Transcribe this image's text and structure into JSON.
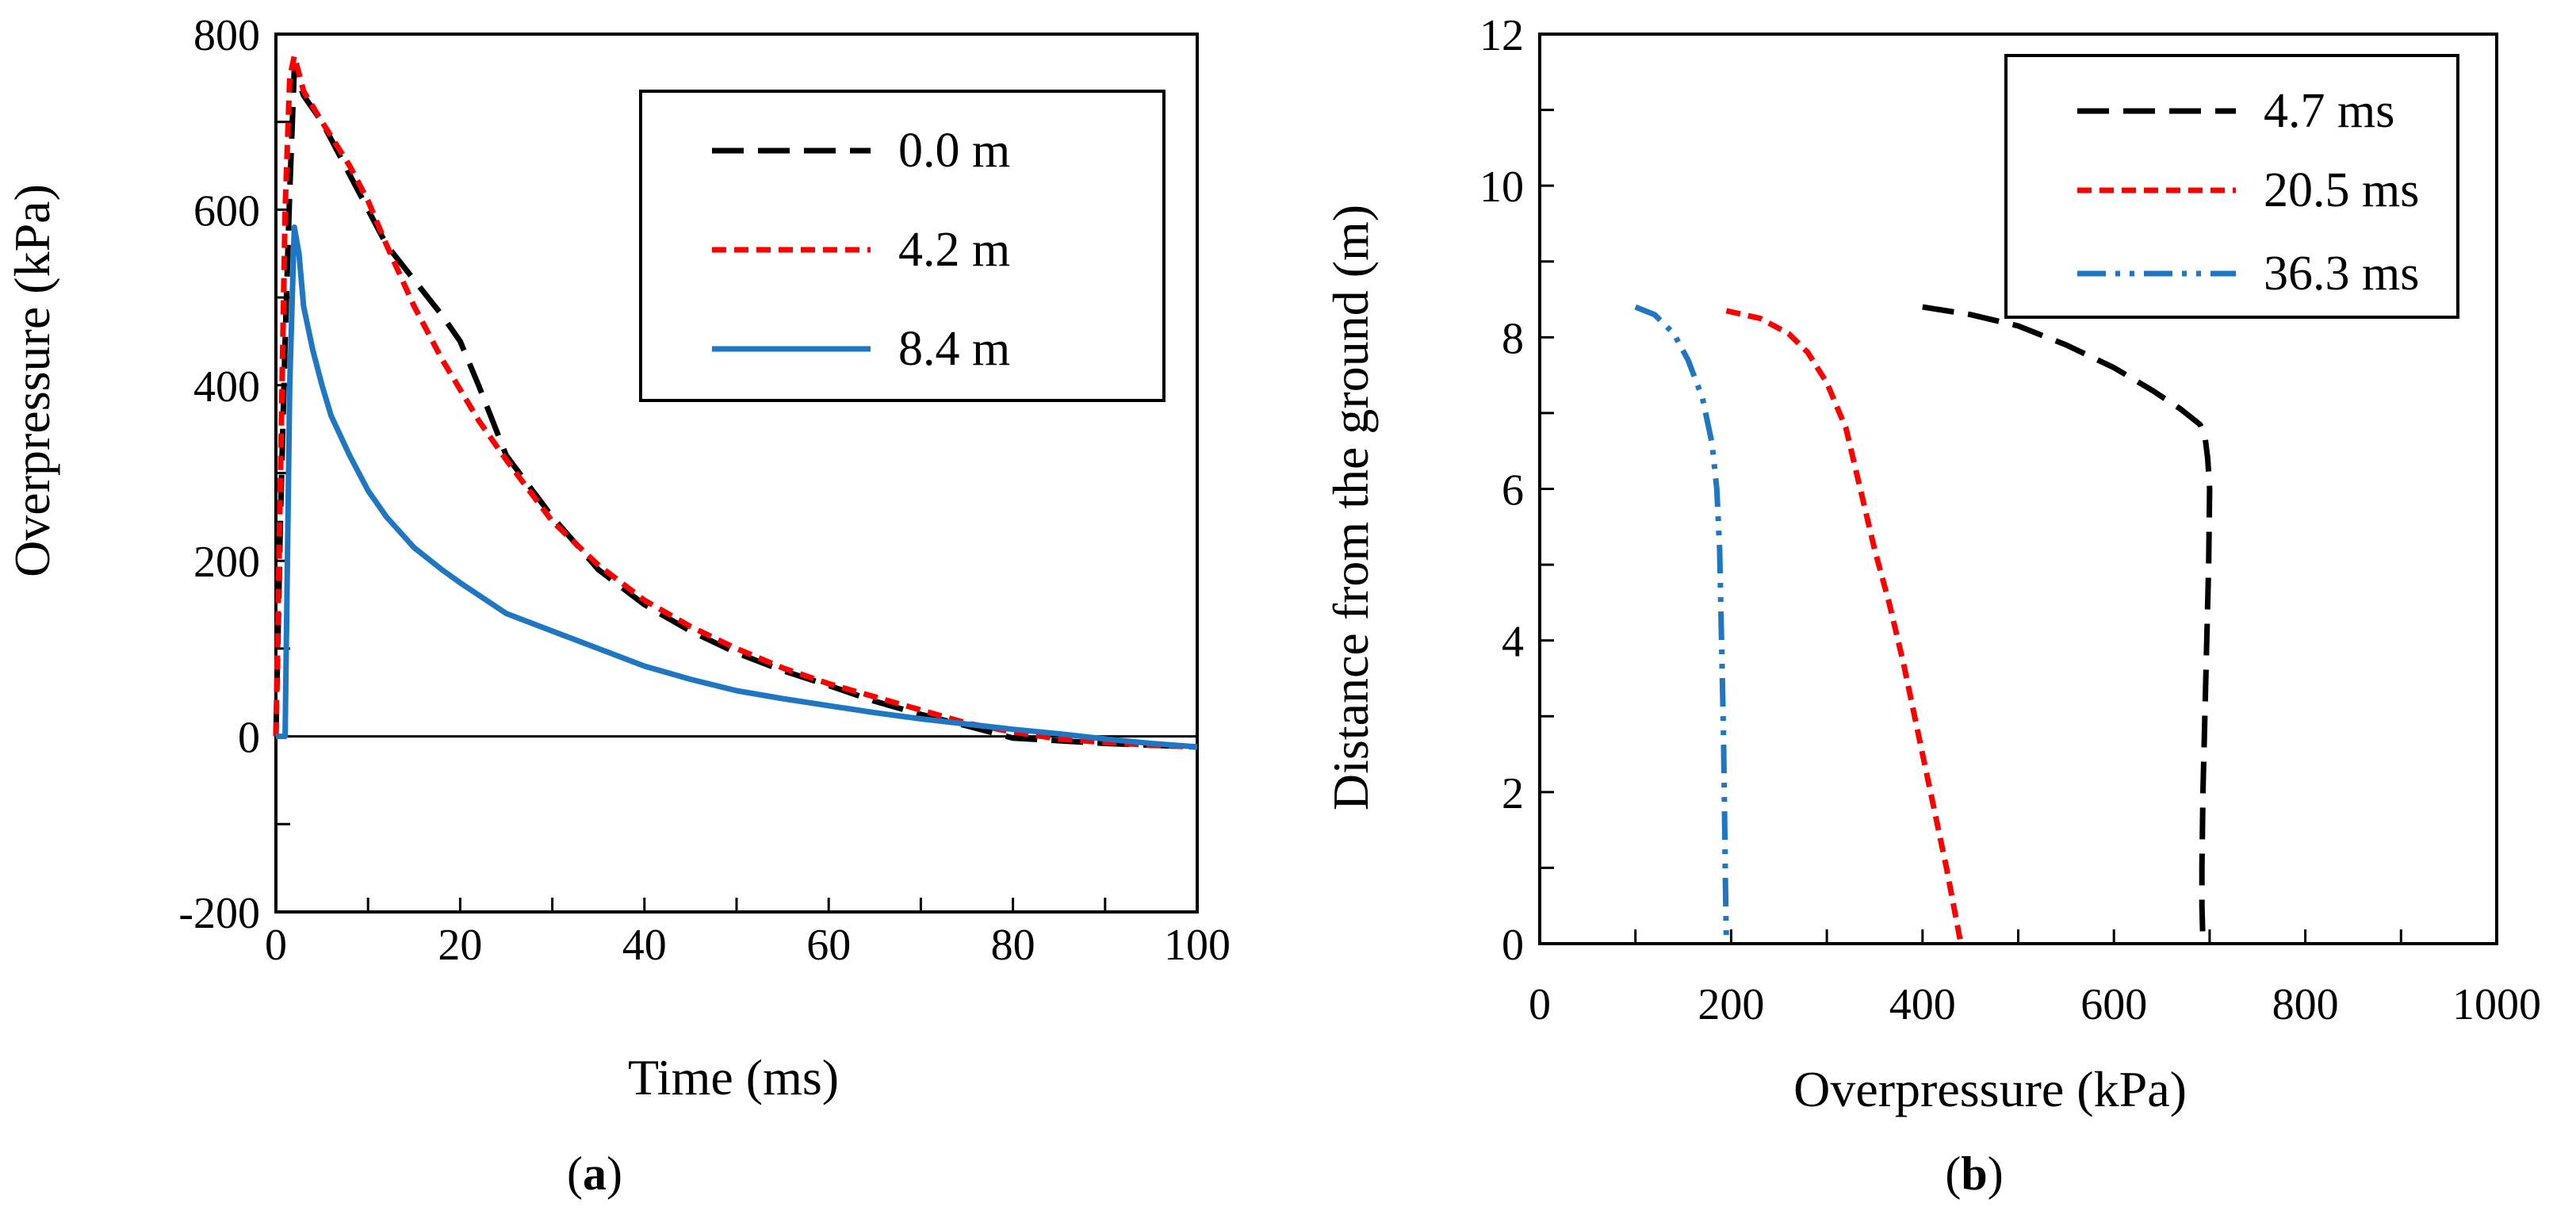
{
  "chart_data": [
    {
      "id": "a",
      "type": "line",
      "panel_label_prefix": "(",
      "panel_label_letter": "a",
      "panel_label_suffix": ")",
      "xlabel": "Time (ms)",
      "ylabel": "Overpressure (kPa)",
      "xlim": [
        0,
        100
      ],
      "ylim": [
        -200,
        800
      ],
      "xticks": [
        0,
        20,
        40,
        60,
        80,
        100
      ],
      "xtick_labels": [
        "0",
        "20",
        "40",
        "60",
        "80",
        "100"
      ],
      "yticks": [
        -200,
        0,
        200,
        400,
        600,
        800
      ],
      "ytick_labels": [
        "-200",
        "0",
        "200",
        "400",
        "600",
        "800"
      ],
      "legend_position": "top-right",
      "series": [
        {
          "name": "0.0 m",
          "color": "#000000",
          "dash": "long-dash",
          "x": [
            0,
            0.5,
            1,
            1.5,
            2,
            2.5,
            3,
            5,
            8,
            10,
            12,
            15,
            18,
            20,
            22,
            25,
            30,
            35,
            40,
            45,
            50,
            55,
            60,
            65,
            70,
            75,
            80,
            85,
            90,
            95,
            100
          ],
          "y": [
            0,
            250,
            450,
            620,
            760,
            745,
            730,
            700,
            640,
            600,
            560,
            520,
            480,
            450,
            400,
            320,
            250,
            190,
            150,
            120,
            95,
            75,
            58,
            40,
            25,
            12,
            -2,
            -5,
            -8,
            -10,
            -12
          ]
        },
        {
          "name": "4.2 m",
          "color": "#ff0000",
          "dash": "short-dash",
          "x": [
            0,
            0.5,
            1,
            1.5,
            2,
            2.5,
            3,
            5,
            8,
            10,
            12,
            15,
            18,
            20,
            22,
            25,
            30,
            35,
            40,
            45,
            50,
            55,
            60,
            65,
            70,
            75,
            80,
            85,
            90,
            95,
            100
          ],
          "y": [
            0,
            300,
            600,
            750,
            775,
            755,
            735,
            700,
            650,
            610,
            560,
            490,
            430,
            395,
            360,
            315,
            245,
            195,
            155,
            125,
            100,
            78,
            60,
            45,
            30,
            15,
            5,
            -3,
            -7,
            -10,
            -12
          ]
        },
        {
          "name": "8.4 m",
          "color": "#1f77c4",
          "dash": "solid",
          "x": [
            0,
            1,
            1.5,
            2,
            2.5,
            3,
            4,
            5,
            6,
            8,
            10,
            12,
            15,
            18,
            20,
            25,
            30,
            35,
            40,
            45,
            50,
            55,
            60,
            65,
            70,
            75,
            80,
            85,
            90,
            95,
            100
          ],
          "y": [
            0,
            0,
            400,
            580,
            550,
            490,
            440,
            400,
            365,
            320,
            280,
            250,
            215,
            190,
            175,
            140,
            120,
            100,
            80,
            65,
            52,
            43,
            35,
            27,
            20,
            14,
            8,
            3,
            -3,
            -8,
            -12
          ]
        }
      ]
    },
    {
      "id": "b",
      "type": "line",
      "panel_label_prefix": "(",
      "panel_label_letter": "b",
      "panel_label_suffix": ")",
      "xlabel": "Overpressure (kPa)",
      "ylabel": "Distance from the ground (m)",
      "xlim": [
        0,
        1000
      ],
      "ylim": [
        0,
        12
      ],
      "xticks": [
        0,
        200,
        400,
        600,
        800,
        1000
      ],
      "xtick_labels": [
        "0",
        "200",
        "400",
        "600",
        "800",
        "1000"
      ],
      "yticks": [
        0,
        2,
        4,
        6,
        8,
        10,
        12
      ],
      "ytick_labels": [
        "0",
        "2",
        "4",
        "6",
        "8",
        "10",
        "12"
      ],
      "legend_position": "top-right",
      "series": [
        {
          "name": "4.7 ms",
          "color": "#000000",
          "dash": "long-dash",
          "x": [
            400,
            450,
            500,
            550,
            600,
            640,
            670,
            690,
            695,
            698,
            700,
            699,
            697,
            695,
            693,
            692,
            692,
            693
          ],
          "y": [
            8.4,
            8.3,
            8.15,
            7.9,
            7.6,
            7.3,
            7.05,
            6.85,
            6.7,
            6.4,
            6.0,
            5.0,
            4.0,
            3.0,
            2.0,
            1.0,
            0.5,
            0
          ]
        },
        {
          "name": "20.5 ms",
          "color": "#ff0000",
          "dash": "short-dash",
          "x": [
            195,
            230,
            260,
            280,
            300,
            320,
            335,
            350,
            365,
            380,
            395,
            410,
            425,
            440
          ],
          "y": [
            8.35,
            8.25,
            8.05,
            7.8,
            7.4,
            6.8,
            6.0,
            5.2,
            4.5,
            3.7,
            2.8,
            1.9,
            1.0,
            0
          ]
        },
        {
          "name": "36.3 ms",
          "color": "#1f77c4",
          "dash": "dash-dot-dot",
          "x": [
            100,
            120,
            140,
            155,
            170,
            180,
            185,
            188,
            190,
            192,
            193,
            194,
            195
          ],
          "y": [
            8.4,
            8.3,
            8.05,
            7.7,
            7.2,
            6.6,
            6.0,
            5.2,
            4.0,
            2.8,
            1.8,
            0.8,
            0
          ]
        }
      ]
    }
  ]
}
